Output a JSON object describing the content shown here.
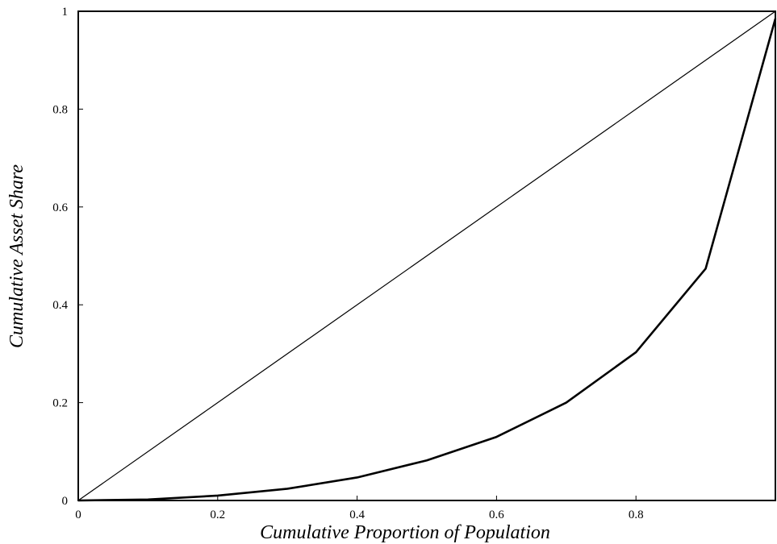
{
  "chart_data": {
    "type": "line",
    "title": "",
    "xlabel": "Cumulative Proportion of Population",
    "ylabel": "Cumulative Asset Share",
    "xlim": [
      0,
      1
    ],
    "ylim": [
      0,
      1
    ],
    "grid": false,
    "x_ticks": [
      {
        "value": 0,
        "label": "0"
      },
      {
        "value": 0.2,
        "label": "0.2"
      },
      {
        "value": 0.4,
        "label": "0.4"
      },
      {
        "value": 0.6,
        "label": "0.6"
      },
      {
        "value": 0.8,
        "label": "0.8"
      }
    ],
    "y_ticks": [
      {
        "value": 0,
        "label": "0"
      },
      {
        "value": 0.2,
        "label": "0.2"
      },
      {
        "value": 0.4,
        "label": "0.4"
      },
      {
        "value": 0.6,
        "label": "0.6"
      },
      {
        "value": 0.8,
        "label": "0.8"
      },
      {
        "value": 1,
        "label": "1"
      }
    ],
    "series": [
      {
        "style": "equality-line",
        "x": [
          0,
          1
        ],
        "y": [
          0,
          1
        ]
      },
      {
        "style": "lorenz-curve",
        "x": [
          0,
          0.1,
          0.2,
          0.3,
          0.4,
          0.5,
          0.6,
          0.7,
          0.8,
          0.9,
          1.0
        ],
        "y": [
          0,
          0.002,
          0.01,
          0.024,
          0.047,
          0.082,
          0.13,
          0.2,
          0.303,
          0.474,
          0.985
        ]
      }
    ]
  }
}
